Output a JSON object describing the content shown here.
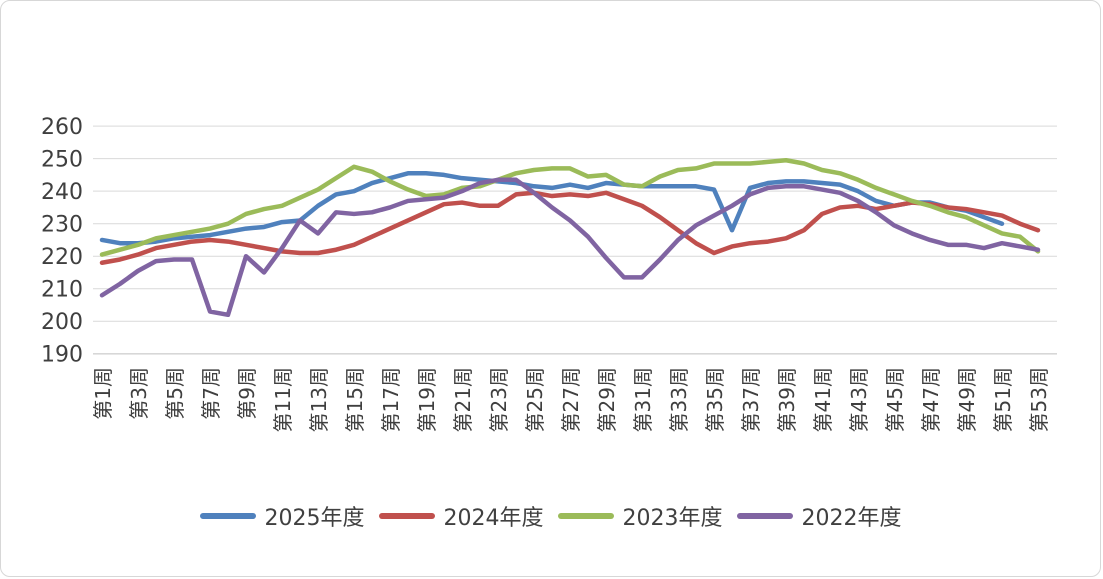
{
  "chart_data": {
    "type": "line",
    "title": "",
    "grid": true,
    "legend_position": "bottom",
    "x_axis": {
      "total_weeks": 53,
      "tick_step": 2,
      "labels": [
        "第1周",
        "第3周",
        "第5周",
        "第7周",
        "第9周",
        "第11周",
        "第13周",
        "第15周",
        "第17周",
        "第19周",
        "第21周",
        "第23周",
        "第25周",
        "第27周",
        "第29周",
        "第31周",
        "第33周",
        "第35周",
        "第37周",
        "第39周",
        "第41周",
        "第43周",
        "第45周",
        "第47周",
        "第49周",
        "第51周",
        "第53周"
      ]
    },
    "y_axis": {
      "min": 190,
      "max": 260,
      "ticks": [
        260,
        250,
        240,
        230,
        220,
        210,
        200,
        190
      ]
    },
    "series": [
      {
        "name": "2025年度",
        "color": "#4F81BD",
        "start_week": 1,
        "values": [
          225,
          224,
          224,
          224.5,
          225.5,
          226,
          226.5,
          227.5,
          228.5,
          229,
          230.5,
          231,
          235.5,
          239,
          240,
          242.5,
          244,
          245.5,
          245.5,
          245,
          244,
          243.5,
          243,
          242.5,
          241.5,
          241,
          242,
          241,
          242.5,
          242,
          241.5,
          241.5,
          241.5,
          241.5,
          240.5,
          228,
          241,
          242.5,
          243,
          243,
          242.5,
          242,
          240,
          237,
          235.5,
          236.5,
          236.5,
          235,
          234,
          232,
          230
        ]
      },
      {
        "name": "2024年度",
        "color": "#C0504D",
        "start_week": 1,
        "values": [
          218,
          219,
          220.5,
          222.5,
          223.5,
          224.5,
          225,
          224.5,
          223.5,
          222.5,
          221.5,
          221,
          221,
          222,
          223.5,
          226,
          228.5,
          231,
          233.5,
          236,
          236.5,
          235.5,
          235.5,
          239,
          239.5,
          238.5,
          239,
          238.5,
          239.5,
          237.5,
          235.5,
          232,
          228,
          224,
          221,
          223,
          224,
          224.5,
          225.5,
          228,
          233,
          235,
          235.5,
          234.5,
          235.5,
          236.5,
          236,
          235,
          234.5,
          233.5,
          232.5,
          230,
          228
        ]
      },
      {
        "name": "2023年度",
        "color": "#9BBB59",
        "start_week": 1,
        "values": [
          220.5,
          222,
          223.5,
          225.5,
          226.5,
          227.5,
          228.5,
          230,
          233,
          234.5,
          235.5,
          238,
          240.5,
          244,
          247.5,
          246,
          243,
          240.5,
          238.5,
          239,
          241,
          241.5,
          243.5,
          245.5,
          246.5,
          247,
          247,
          244.5,
          245,
          242,
          241.5,
          244.5,
          246.5,
          247,
          248.5,
          248.5,
          248.5,
          249,
          249.5,
          248.5,
          246.5,
          245.5,
          243.5,
          241,
          239,
          237,
          235.5,
          233.5,
          232,
          229.5,
          227,
          226,
          221.5
        ]
      },
      {
        "name": "2022年度",
        "color": "#8064A2",
        "start_week": 1,
        "values": [
          208,
          211.5,
          215.5,
          218.5,
          219,
          219,
          203,
          202,
          220,
          215,
          222.5,
          231,
          227,
          233.5,
          233,
          233.5,
          235,
          237,
          237.5,
          238,
          240,
          242.5,
          243.5,
          243.5,
          239.5,
          235,
          231,
          226,
          219.5,
          213.5,
          213.5,
          219,
          225,
          229.5,
          232.5,
          235.5,
          239,
          241,
          241.5,
          241.5,
          240.5,
          239.5,
          237,
          233.5,
          229.5,
          227,
          225,
          223.5,
          223.5,
          222.5,
          224,
          223,
          222
        ]
      }
    ]
  }
}
